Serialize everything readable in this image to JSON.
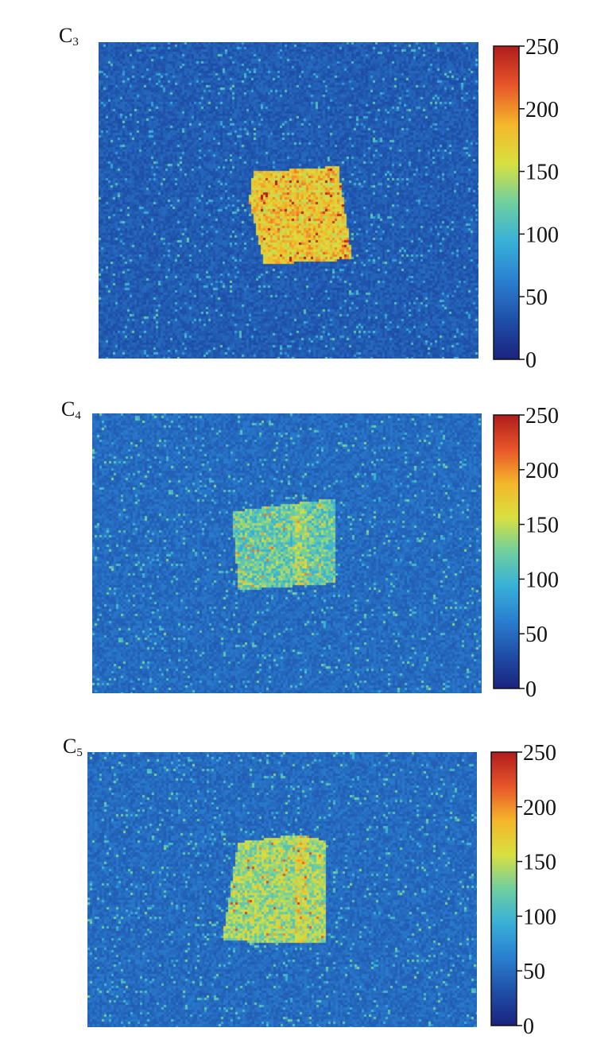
{
  "chart_data": [
    {
      "type": "heatmap",
      "panel_label": "C",
      "panel_label_sub": "3",
      "colorbar": {
        "vmin": 0,
        "vmax": 250,
        "ticks": [
          "0",
          "50",
          "100",
          "150",
          "200",
          "250"
        ],
        "colormap": "jet"
      },
      "background_level": 40,
      "object_level": 175,
      "object_shape": "tilted square, upper-center"
    },
    {
      "type": "heatmap",
      "panel_label": "C",
      "panel_label_sub": "4",
      "colorbar": {
        "vmin": 0,
        "vmax": 250,
        "ticks": [
          "0",
          "50",
          "100",
          "150",
          "200",
          "250"
        ],
        "colormap": "jet"
      },
      "background_level": 50,
      "object_level": 120,
      "object_shape": "square with bright vertical streak, center"
    },
    {
      "type": "heatmap",
      "panel_label": "C",
      "panel_label_sub": "5",
      "colorbar": {
        "vmin": 0,
        "vmax": 250,
        "ticks": [
          "0",
          "50",
          "100",
          "150",
          "200",
          "250"
        ],
        "colormap": "jet"
      },
      "background_level": 50,
      "object_level": 140,
      "object_shape": "square with bright vertical streak, center"
    }
  ],
  "colors": {
    "jet_stops": [
      "#1a237e",
      "#1f4fa8",
      "#2a7fd0",
      "#38b0d8",
      "#6fcfa0",
      "#d8e040",
      "#f4b62a",
      "#e8552a",
      "#b01c1c"
    ]
  }
}
